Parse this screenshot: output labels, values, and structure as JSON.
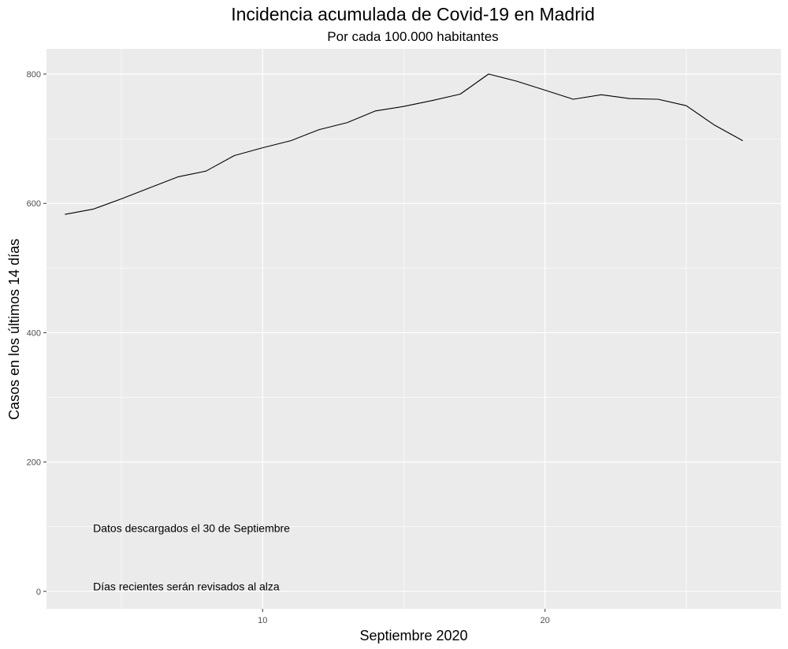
{
  "chart_data": {
    "type": "line",
    "title": "Incidencia acumulada de Covid-19 en Madrid",
    "subtitle": "Por cada 100.000 habitantes",
    "xlabel": "Septiembre 2020",
    "ylabel": "Casos en los últimos 14 días",
    "xlim": [
      2.35,
      28.35
    ],
    "ylim": [
      -27,
      839
    ],
    "x_major_ticks": [
      10,
      20
    ],
    "x_minor_ticks": [
      5,
      15,
      25
    ],
    "y_major_ticks": [
      0,
      200,
      400,
      600,
      800
    ],
    "y_minor_ticks": [
      100,
      300,
      500,
      700
    ],
    "x_tick_labels": [
      "10",
      "20"
    ],
    "y_tick_labels": [
      "0",
      "200",
      "400",
      "600",
      "800"
    ],
    "line_color": "#000000",
    "panel_color": "#ebebeb",
    "grid_color": "#ffffff",
    "series": [
      {
        "name": "Incidencia acumulada",
        "x": [
          3,
          4,
          5,
          6,
          7,
          8,
          9,
          10,
          11,
          12,
          13,
          14,
          15,
          16,
          17,
          18,
          19,
          20,
          21,
          22,
          23,
          24,
          25,
          26,
          27
        ],
        "values": [
          583,
          591,
          607,
          624,
          641,
          650,
          674,
          686,
          697,
          714,
          725,
          743,
          750,
          759,
          769,
          800,
          789,
          775,
          761,
          768,
          762,
          761,
          751,
          721,
          697
        ]
      }
    ],
    "annotations": [
      {
        "text": "Datos descargados el 30 de Septiembre",
        "x": 4,
        "y": 98
      },
      {
        "text": "Días recientes serán revisados al alza",
        "x": 4,
        "y": 8
      }
    ]
  }
}
